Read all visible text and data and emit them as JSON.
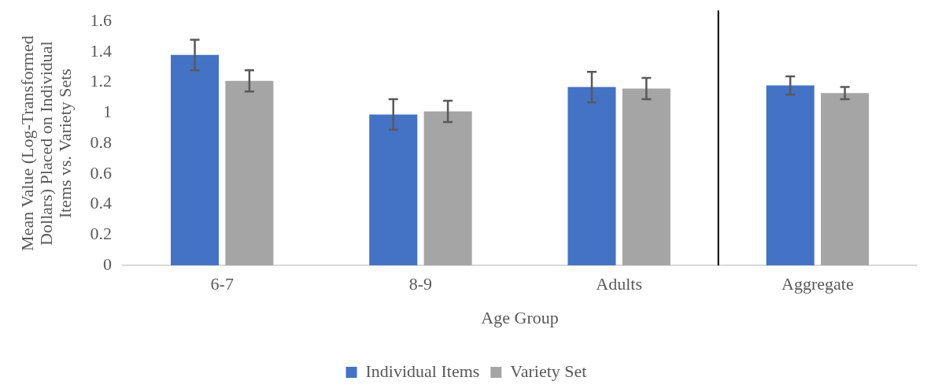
{
  "chart_data": {
    "type": "bar",
    "xlabel": "Age Group",
    "ylabel": "Mean Value (Log-Transformed Dollars) Placed on Individual Items vs. Variety Sets",
    "categories": [
      "6-7",
      "8-9",
      "Adults",
      "Aggregate"
    ],
    "series": [
      {
        "name": "Individual Items",
        "color": "#4472c4",
        "values": [
          1.38,
          0.99,
          1.17,
          1.18
        ],
        "errors": [
          0.1,
          0.1,
          0.1,
          0.06
        ]
      },
      {
        "name": "Variety Set",
        "color": "#a5a5a5",
        "values": [
          1.21,
          1.01,
          1.16,
          1.13
        ],
        "errors": [
          0.07,
          0.07,
          0.07,
          0.04
        ]
      }
    ],
    "ylim": [
      0,
      1.6
    ],
    "yticks": [
      0,
      0.2,
      0.4,
      0.6,
      0.8,
      1,
      1.2,
      1.4,
      1.6
    ],
    "grid": false,
    "legend": "bottom"
  }
}
